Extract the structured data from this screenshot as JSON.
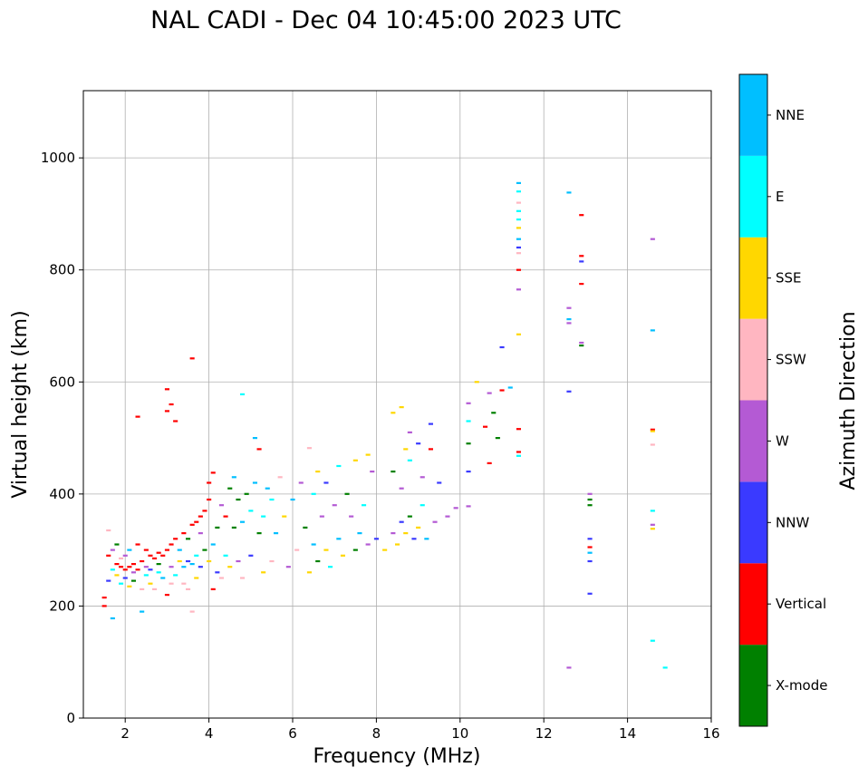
{
  "chart_data": {
    "type": "scatter",
    "title": "NAL CADI - Dec 04 10:45:00 2023 UTC",
    "xlabel": "Frequency (MHz)",
    "ylabel": "Virtual height (km)",
    "xlim": [
      1,
      16
    ],
    "ylim": [
      0,
      1120
    ],
    "xticks": [
      2,
      4,
      6,
      8,
      10,
      12,
      14,
      16
    ],
    "yticks": [
      0,
      200,
      400,
      600,
      800,
      1000
    ],
    "grid": true,
    "colorbar": {
      "label": "Azimuth Direction",
      "categories": [
        {
          "name": "X-mode",
          "color": "#008000"
        },
        {
          "name": "Vertical",
          "color": "#ff0000"
        },
        {
          "name": "NNW",
          "color": "#3a3aff"
        },
        {
          "name": "W",
          "color": "#b45ad4"
        },
        {
          "name": "SSW",
          "color": "#ffb6c1"
        },
        {
          "name": "SSE",
          "color": "#ffd700"
        },
        {
          "name": "E",
          "color": "#00ffff"
        },
        {
          "name": "NNE",
          "color": "#00bfff"
        }
      ]
    },
    "points": [
      {
        "f": 1.5,
        "h": 200,
        "dir": "Vertical"
      },
      {
        "f": 1.5,
        "h": 215,
        "dir": "Vertical"
      },
      {
        "f": 1.6,
        "h": 245,
        "dir": "NNW"
      },
      {
        "f": 1.6,
        "h": 290,
        "dir": "Vertical"
      },
      {
        "f": 1.6,
        "h": 335,
        "dir": "SSW"
      },
      {
        "f": 1.7,
        "h": 265,
        "dir": "E"
      },
      {
        "f": 1.7,
        "h": 300,
        "dir": "W"
      },
      {
        "f": 1.7,
        "h": 178,
        "dir": "NNE"
      },
      {
        "f": 1.8,
        "h": 275,
        "dir": "Vertical"
      },
      {
        "f": 1.8,
        "h": 255,
        "dir": "SSE"
      },
      {
        "f": 1.8,
        "h": 310,
        "dir": "X-mode"
      },
      {
        "f": 1.9,
        "h": 270,
        "dir": "Vertical"
      },
      {
        "f": 1.9,
        "h": 240,
        "dir": "E"
      },
      {
        "f": 1.9,
        "h": 285,
        "dir": "SSW"
      },
      {
        "f": 2.0,
        "h": 265,
        "dir": "Vertical"
      },
      {
        "f": 2.0,
        "h": 250,
        "dir": "NNW"
      },
      {
        "f": 2.0,
        "h": 290,
        "dir": "W"
      },
      {
        "f": 2.1,
        "h": 270,
        "dir": "Vertical"
      },
      {
        "f": 2.1,
        "h": 300,
        "dir": "NNE"
      },
      {
        "f": 2.1,
        "h": 235,
        "dir": "SSE"
      },
      {
        "f": 2.2,
        "h": 275,
        "dir": "Vertical"
      },
      {
        "f": 2.2,
        "h": 260,
        "dir": "W"
      },
      {
        "f": 2.2,
        "h": 245,
        "dir": "X-mode"
      },
      {
        "f": 2.3,
        "h": 265,
        "dir": "Vertical"
      },
      {
        "f": 2.3,
        "h": 310,
        "dir": "Vertical"
      },
      {
        "f": 2.3,
        "h": 538,
        "dir": "Vertical"
      },
      {
        "f": 2.4,
        "h": 280,
        "dir": "Vertical"
      },
      {
        "f": 2.4,
        "h": 230,
        "dir": "SSW"
      },
      {
        "f": 2.4,
        "h": 190,
        "dir": "NNE"
      },
      {
        "f": 2.5,
        "h": 300,
        "dir": "Vertical"
      },
      {
        "f": 2.5,
        "h": 255,
        "dir": "E"
      },
      {
        "f": 2.5,
        "h": 270,
        "dir": "W"
      },
      {
        "f": 2.6,
        "h": 290,
        "dir": "Vertical"
      },
      {
        "f": 2.6,
        "h": 265,
        "dir": "NNW"
      },
      {
        "f": 2.6,
        "h": 240,
        "dir": "SSE"
      },
      {
        "f": 2.7,
        "h": 285,
        "dir": "Vertical"
      },
      {
        "f": 2.7,
        "h": 230,
        "dir": "SSW"
      },
      {
        "f": 2.8,
        "h": 295,
        "dir": "Vertical"
      },
      {
        "f": 2.8,
        "h": 260,
        "dir": "E"
      },
      {
        "f": 2.8,
        "h": 275,
        "dir": "X-mode"
      },
      {
        "f": 2.9,
        "h": 290,
        "dir": "Vertical"
      },
      {
        "f": 2.9,
        "h": 250,
        "dir": "NNE"
      },
      {
        "f": 3.0,
        "h": 300,
        "dir": "Vertical"
      },
      {
        "f": 3.0,
        "h": 220,
        "dir": "Vertical"
      },
      {
        "f": 3.0,
        "h": 587,
        "dir": "Vertical"
      },
      {
        "f": 3.0,
        "h": 548,
        "dir": "Vertical"
      },
      {
        "f": 3.1,
        "h": 310,
        "dir": "Vertical"
      },
      {
        "f": 3.1,
        "h": 560,
        "dir": "Vertical"
      },
      {
        "f": 3.1,
        "h": 270,
        "dir": "W"
      },
      {
        "f": 3.1,
        "h": 240,
        "dir": "SSW"
      },
      {
        "f": 3.2,
        "h": 320,
        "dir": "Vertical"
      },
      {
        "f": 3.2,
        "h": 530,
        "dir": "Vertical"
      },
      {
        "f": 3.2,
        "h": 255,
        "dir": "E"
      },
      {
        "f": 3.3,
        "h": 300,
        "dir": "NNE"
      },
      {
        "f": 3.3,
        "h": 280,
        "dir": "SSE"
      },
      {
        "f": 3.4,
        "h": 330,
        "dir": "Vertical"
      },
      {
        "f": 3.4,
        "h": 270,
        "dir": "NNE"
      },
      {
        "f": 3.4,
        "h": 240,
        "dir": "SSW"
      },
      {
        "f": 3.5,
        "h": 320,
        "dir": "X-mode"
      },
      {
        "f": 3.5,
        "h": 280,
        "dir": "NNW"
      },
      {
        "f": 3.5,
        "h": 230,
        "dir": "SSW"
      },
      {
        "f": 3.6,
        "h": 345,
        "dir": "Vertical"
      },
      {
        "f": 3.6,
        "h": 642,
        "dir": "Vertical"
      },
      {
        "f": 3.6,
        "h": 275,
        "dir": "NNE"
      },
      {
        "f": 3.6,
        "h": 190,
        "dir": "SSW"
      },
      {
        "f": 3.7,
        "h": 350,
        "dir": "Vertical"
      },
      {
        "f": 3.7,
        "h": 290,
        "dir": "E"
      },
      {
        "f": 3.7,
        "h": 250,
        "dir": "SSE"
      },
      {
        "f": 3.8,
        "h": 360,
        "dir": "Vertical"
      },
      {
        "f": 3.8,
        "h": 330,
        "dir": "W"
      },
      {
        "f": 3.8,
        "h": 270,
        "dir": "NNW"
      },
      {
        "f": 3.9,
        "h": 370,
        "dir": "Vertical"
      },
      {
        "f": 3.9,
        "h": 300,
        "dir": "X-mode"
      },
      {
        "f": 4.0,
        "h": 390,
        "dir": "Vertical"
      },
      {
        "f": 4.0,
        "h": 420,
        "dir": "Vertical"
      },
      {
        "f": 4.0,
        "h": 280,
        "dir": "SSE"
      },
      {
        "f": 4.1,
        "h": 438,
        "dir": "Vertical"
      },
      {
        "f": 4.1,
        "h": 230,
        "dir": "Vertical"
      },
      {
        "f": 4.1,
        "h": 310,
        "dir": "NNE"
      },
      {
        "f": 4.2,
        "h": 260,
        "dir": "NNW"
      },
      {
        "f": 4.2,
        "h": 340,
        "dir": "X-mode"
      },
      {
        "f": 4.3,
        "h": 380,
        "dir": "W"
      },
      {
        "f": 4.3,
        "h": 250,
        "dir": "SSW"
      },
      {
        "f": 4.4,
        "h": 360,
        "dir": "Vertical"
      },
      {
        "f": 4.4,
        "h": 290,
        "dir": "E"
      },
      {
        "f": 4.5,
        "h": 410,
        "dir": "X-mode"
      },
      {
        "f": 4.5,
        "h": 270,
        "dir": "SSE"
      },
      {
        "f": 4.6,
        "h": 430,
        "dir": "NNE"
      },
      {
        "f": 4.6,
        "h": 340,
        "dir": "X-mode"
      },
      {
        "f": 4.7,
        "h": 390,
        "dir": "X-mode"
      },
      {
        "f": 4.7,
        "h": 280,
        "dir": "W"
      },
      {
        "f": 4.8,
        "h": 578,
        "dir": "E"
      },
      {
        "f": 4.8,
        "h": 350,
        "dir": "NNE"
      },
      {
        "f": 4.8,
        "h": 250,
        "dir": "SSW"
      },
      {
        "f": 4.9,
        "h": 400,
        "dir": "X-mode"
      },
      {
        "f": 5.0,
        "h": 370,
        "dir": "E"
      },
      {
        "f": 5.0,
        "h": 290,
        "dir": "NNW"
      },
      {
        "f": 5.1,
        "h": 500,
        "dir": "NNE"
      },
      {
        "f": 5.1,
        "h": 420,
        "dir": "NNE"
      },
      {
        "f": 5.2,
        "h": 480,
        "dir": "Vertical"
      },
      {
        "f": 5.2,
        "h": 330,
        "dir": "X-mode"
      },
      {
        "f": 5.3,
        "h": 360,
        "dir": "E"
      },
      {
        "f": 5.3,
        "h": 260,
        "dir": "SSE"
      },
      {
        "f": 5.4,
        "h": 410,
        "dir": "NNE"
      },
      {
        "f": 5.5,
        "h": 390,
        "dir": "E"
      },
      {
        "f": 5.5,
        "h": 280,
        "dir": "SSW"
      },
      {
        "f": 5.6,
        "h": 330,
        "dir": "NNE"
      },
      {
        "f": 5.7,
        "h": 430,
        "dir": "SSW"
      },
      {
        "f": 5.8,
        "h": 360,
        "dir": "SSE"
      },
      {
        "f": 5.9,
        "h": 270,
        "dir": "W"
      },
      {
        "f": 6.0,
        "h": 390,
        "dir": "NNE"
      },
      {
        "f": 6.1,
        "h": 300,
        "dir": "SSW"
      },
      {
        "f": 6.2,
        "h": 420,
        "dir": "W"
      },
      {
        "f": 6.3,
        "h": 340,
        "dir": "X-mode"
      },
      {
        "f": 6.4,
        "h": 482,
        "dir": "SSW"
      },
      {
        "f": 6.4,
        "h": 260,
        "dir": "SSE"
      },
      {
        "f": 6.5,
        "h": 400,
        "dir": "E"
      },
      {
        "f": 6.5,
        "h": 310,
        "dir": "NNE"
      },
      {
        "f": 6.6,
        "h": 440,
        "dir": "SSE"
      },
      {
        "f": 6.6,
        "h": 280,
        "dir": "X-mode"
      },
      {
        "f": 6.7,
        "h": 360,
        "dir": "W"
      },
      {
        "f": 6.8,
        "h": 420,
        "dir": "NNW"
      },
      {
        "f": 6.8,
        "h": 300,
        "dir": "SSE"
      },
      {
        "f": 6.9,
        "h": 270,
        "dir": "E"
      },
      {
        "f": 7.0,
        "h": 380,
        "dir": "W"
      },
      {
        "f": 7.1,
        "h": 450,
        "dir": "E"
      },
      {
        "f": 7.1,
        "h": 320,
        "dir": "NNE"
      },
      {
        "f": 7.2,
        "h": 290,
        "dir": "SSE"
      },
      {
        "f": 7.3,
        "h": 400,
        "dir": "X-mode"
      },
      {
        "f": 7.4,
        "h": 360,
        "dir": "W"
      },
      {
        "f": 7.5,
        "h": 460,
        "dir": "SSE"
      },
      {
        "f": 7.5,
        "h": 300,
        "dir": "X-mode"
      },
      {
        "f": 7.6,
        "h": 330,
        "dir": "NNE"
      },
      {
        "f": 7.7,
        "h": 380,
        "dir": "E"
      },
      {
        "f": 7.8,
        "h": 470,
        "dir": "SSE"
      },
      {
        "f": 7.8,
        "h": 310,
        "dir": "W"
      },
      {
        "f": 7.9,
        "h": 440,
        "dir": "W"
      },
      {
        "f": 8.0,
        "h": 320,
        "dir": "NNW"
      },
      {
        "f": 8.2,
        "h": 300,
        "dir": "SSE"
      },
      {
        "f": 8.4,
        "h": 545,
        "dir": "SSE"
      },
      {
        "f": 8.4,
        "h": 440,
        "dir": "X-mode"
      },
      {
        "f": 8.4,
        "h": 330,
        "dir": "W"
      },
      {
        "f": 8.5,
        "h": 310,
        "dir": "SSE"
      },
      {
        "f": 8.6,
        "h": 555,
        "dir": "SSE"
      },
      {
        "f": 8.6,
        "h": 410,
        "dir": "W"
      },
      {
        "f": 8.6,
        "h": 350,
        "dir": "NNW"
      },
      {
        "f": 8.7,
        "h": 480,
        "dir": "SSE"
      },
      {
        "f": 8.7,
        "h": 330,
        "dir": "SSE"
      },
      {
        "f": 8.8,
        "h": 510,
        "dir": "W"
      },
      {
        "f": 8.8,
        "h": 460,
        "dir": "E"
      },
      {
        "f": 8.8,
        "h": 360,
        "dir": "X-mode"
      },
      {
        "f": 8.9,
        "h": 320,
        "dir": "NNW"
      },
      {
        "f": 9.0,
        "h": 490,
        "dir": "NNW"
      },
      {
        "f": 9.0,
        "h": 340,
        "dir": "SSE"
      },
      {
        "f": 9.1,
        "h": 430,
        "dir": "W"
      },
      {
        "f": 9.1,
        "h": 380,
        "dir": "E"
      },
      {
        "f": 9.2,
        "h": 320,
        "dir": "NNE"
      },
      {
        "f": 9.3,
        "h": 525,
        "dir": "NNW"
      },
      {
        "f": 9.3,
        "h": 480,
        "dir": "Vertical"
      },
      {
        "f": 9.4,
        "h": 350,
        "dir": "W"
      },
      {
        "f": 9.5,
        "h": 420,
        "dir": "NNW"
      },
      {
        "f": 9.7,
        "h": 360,
        "dir": "W"
      },
      {
        "f": 9.9,
        "h": 375,
        "dir": "W"
      },
      {
        "f": 10.2,
        "h": 562,
        "dir": "W"
      },
      {
        "f": 10.2,
        "h": 530,
        "dir": "E"
      },
      {
        "f": 10.2,
        "h": 490,
        "dir": "X-mode"
      },
      {
        "f": 10.2,
        "h": 440,
        "dir": "NNW"
      },
      {
        "f": 10.2,
        "h": 378,
        "dir": "W"
      },
      {
        "f": 10.4,
        "h": 600,
        "dir": "SSE"
      },
      {
        "f": 10.6,
        "h": 520,
        "dir": "Vertical"
      },
      {
        "f": 10.7,
        "h": 580,
        "dir": "W"
      },
      {
        "f": 10.7,
        "h": 455,
        "dir": "Vertical"
      },
      {
        "f": 10.8,
        "h": 545,
        "dir": "X-mode"
      },
      {
        "f": 10.9,
        "h": 500,
        "dir": "X-mode"
      },
      {
        "f": 11.0,
        "h": 585,
        "dir": "Vertical"
      },
      {
        "f": 11.0,
        "h": 662,
        "dir": "NNW"
      },
      {
        "f": 11.2,
        "h": 590,
        "dir": "NNE"
      },
      {
        "f": 11.4,
        "h": 955,
        "dir": "NNE"
      },
      {
        "f": 11.4,
        "h": 940,
        "dir": "E"
      },
      {
        "f": 11.4,
        "h": 920,
        "dir": "SSW"
      },
      {
        "f": 11.4,
        "h": 905,
        "dir": "E"
      },
      {
        "f": 11.4,
        "h": 890,
        "dir": "E"
      },
      {
        "f": 11.4,
        "h": 875,
        "dir": "SSE"
      },
      {
        "f": 11.4,
        "h": 855,
        "dir": "NNE"
      },
      {
        "f": 11.4,
        "h": 840,
        "dir": "NNW"
      },
      {
        "f": 11.4,
        "h": 830,
        "dir": "SSW"
      },
      {
        "f": 11.4,
        "h": 800,
        "dir": "Vertical"
      },
      {
        "f": 11.4,
        "h": 765,
        "dir": "W"
      },
      {
        "f": 11.4,
        "h": 685,
        "dir": "SSE"
      },
      {
        "f": 11.4,
        "h": 516,
        "dir": "Vertical"
      },
      {
        "f": 11.4,
        "h": 475,
        "dir": "Vertical"
      },
      {
        "f": 11.4,
        "h": 468,
        "dir": "E"
      },
      {
        "f": 12.6,
        "h": 938,
        "dir": "NNE"
      },
      {
        "f": 12.6,
        "h": 732,
        "dir": "W"
      },
      {
        "f": 12.6,
        "h": 712,
        "dir": "NNE"
      },
      {
        "f": 12.6,
        "h": 705,
        "dir": "W"
      },
      {
        "f": 12.6,
        "h": 583,
        "dir": "NNW"
      },
      {
        "f": 12.6,
        "h": 90,
        "dir": "W"
      },
      {
        "f": 12.9,
        "h": 898,
        "dir": "Vertical"
      },
      {
        "f": 12.9,
        "h": 825,
        "dir": "Vertical"
      },
      {
        "f": 12.9,
        "h": 815,
        "dir": "NNW"
      },
      {
        "f": 12.9,
        "h": 775,
        "dir": "Vertical"
      },
      {
        "f": 12.9,
        "h": 670,
        "dir": "W"
      },
      {
        "f": 12.9,
        "h": 665,
        "dir": "X-mode"
      },
      {
        "f": 13.1,
        "h": 400,
        "dir": "W"
      },
      {
        "f": 13.1,
        "h": 390,
        "dir": "X-mode"
      },
      {
        "f": 13.1,
        "h": 380,
        "dir": "X-mode"
      },
      {
        "f": 13.1,
        "h": 320,
        "dir": "NNW"
      },
      {
        "f": 13.1,
        "h": 305,
        "dir": "Vertical"
      },
      {
        "f": 13.1,
        "h": 295,
        "dir": "NNE"
      },
      {
        "f": 13.1,
        "h": 280,
        "dir": "NNW"
      },
      {
        "f": 13.1,
        "h": 222,
        "dir": "NNW"
      },
      {
        "f": 14.6,
        "h": 855,
        "dir": "W"
      },
      {
        "f": 14.6,
        "h": 692,
        "dir": "NNE"
      },
      {
        "f": 14.6,
        "h": 515,
        "dir": "Vertical"
      },
      {
        "f": 14.6,
        "h": 512,
        "dir": "SSE"
      },
      {
        "f": 14.6,
        "h": 488,
        "dir": "SSW"
      },
      {
        "f": 14.6,
        "h": 370,
        "dir": "E"
      },
      {
        "f": 14.6,
        "h": 345,
        "dir": "W"
      },
      {
        "f": 14.6,
        "h": 338,
        "dir": "SSE"
      },
      {
        "f": 14.6,
        "h": 138,
        "dir": "E"
      },
      {
        "f": 14.9,
        "h": 90,
        "dir": "E"
      }
    ]
  }
}
